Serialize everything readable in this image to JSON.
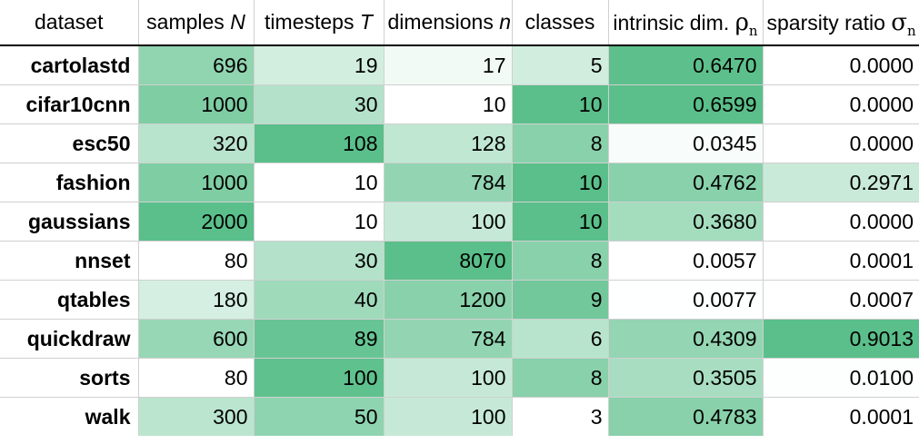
{
  "headers": {
    "dataset": "dataset",
    "samples": "samples",
    "samples_sym": "N",
    "timesteps": "timesteps",
    "timesteps_sym": "T",
    "dimensions": "dimensions",
    "dimensions_sym": "n",
    "classes": "classes",
    "intrinsic": "intrinsic dim.",
    "intrinsic_sym": "ρ",
    "intrinsic_sub": "n",
    "sparsity": "sparsity ratio",
    "sparsity_sym": "σ",
    "sparsity_sub": "n"
  },
  "rows": [
    {
      "dataset": "cartolastd",
      "samples": "696",
      "timesteps": "19",
      "dimensions": "17",
      "classes": "5",
      "intrinsic": "0.6470",
      "sparsity": "0.0000"
    },
    {
      "dataset": "cifar10cnn",
      "samples": "1000",
      "timesteps": "30",
      "dimensions": "10",
      "classes": "10",
      "intrinsic": "0.6599",
      "sparsity": "0.0000"
    },
    {
      "dataset": "esc50",
      "samples": "320",
      "timesteps": "108",
      "dimensions": "128",
      "classes": "8",
      "intrinsic": "0.0345",
      "sparsity": "0.0000"
    },
    {
      "dataset": "fashion",
      "samples": "1000",
      "timesteps": "10",
      "dimensions": "784",
      "classes": "10",
      "intrinsic": "0.4762",
      "sparsity": "0.2971"
    },
    {
      "dataset": "gaussians",
      "samples": "2000",
      "timesteps": "10",
      "dimensions": "100",
      "classes": "10",
      "intrinsic": "0.3680",
      "sparsity": "0.0000"
    },
    {
      "dataset": "nnset",
      "samples": "80",
      "timesteps": "30",
      "dimensions": "8070",
      "classes": "8",
      "intrinsic": "0.0057",
      "sparsity": "0.0001"
    },
    {
      "dataset": "qtables",
      "samples": "180",
      "timesteps": "40",
      "dimensions": "1200",
      "classes": "9",
      "intrinsic": "0.0077",
      "sparsity": "0.0007"
    },
    {
      "dataset": "quickdraw",
      "samples": "600",
      "timesteps": "89",
      "dimensions": "784",
      "classes": "6",
      "intrinsic": "0.4309",
      "sparsity": "0.9013"
    },
    {
      "dataset": "sorts",
      "samples": "80",
      "timesteps": "100",
      "dimensions": "100",
      "classes": "8",
      "intrinsic": "0.3505",
      "sparsity": "0.0100"
    },
    {
      "dataset": "walk",
      "samples": "300",
      "timesteps": "50",
      "dimensions": "100",
      "classes": "3",
      "intrinsic": "0.4783",
      "sparsity": "0.0001"
    }
  ],
  "colors": {
    "heat_max": "#5abf8a",
    "heat_min": "#ffffff",
    "grid": "#d0d0d0"
  }
}
